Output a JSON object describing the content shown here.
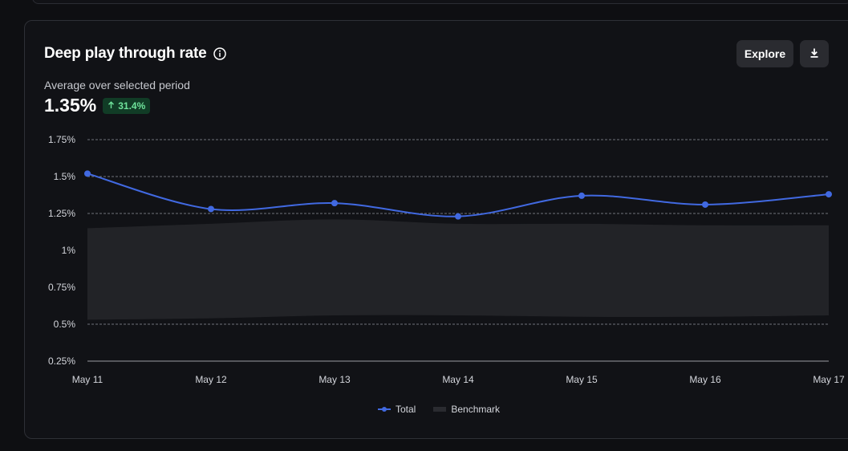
{
  "card": {
    "title": "Deep play through rate",
    "subtitle": "Average over selected period",
    "metric": "1.35%",
    "change": "31.4%",
    "explore_label": "Explore"
  },
  "icons": {
    "info": "info-icon",
    "download": "download-icon",
    "change": "arrow-up-icon"
  },
  "colors": {
    "total": "#4169e1",
    "benchmark": "#222327",
    "badge_bg": "#113c26",
    "badge_text": "#6fe39b"
  },
  "chart_data": {
    "type": "line",
    "x": [
      "May 11",
      "May 12",
      "May 13",
      "May 14",
      "May 15",
      "May 16",
      "May 17"
    ],
    "yticks": [
      "1.75%",
      "1.5%",
      "1.25%",
      "1%",
      "0.75%",
      "0.5%",
      "0.25%"
    ],
    "ylim": [
      0.25,
      1.75
    ],
    "series": [
      {
        "name": "Total",
        "type": "line",
        "values": [
          1.52,
          1.28,
          1.32,
          1.23,
          1.37,
          1.31,
          1.38
        ]
      },
      {
        "name": "Benchmark",
        "type": "area-band",
        "upper": [
          1.15,
          1.18,
          1.21,
          1.18,
          1.18,
          1.17,
          1.17
        ],
        "lower": [
          0.53,
          0.54,
          0.56,
          0.56,
          0.55,
          0.55,
          0.56
        ]
      }
    ],
    "grid": true,
    "legend": "bottom-center"
  }
}
